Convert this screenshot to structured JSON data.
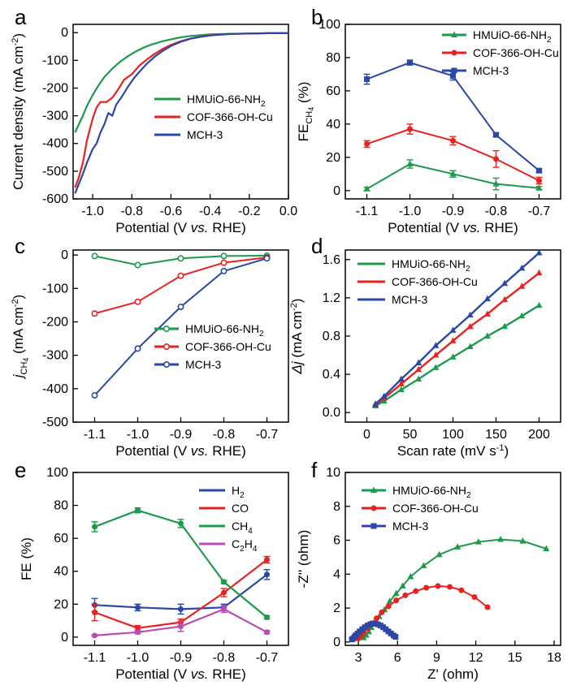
{
  "colors": {
    "green": "#1d9a4c",
    "red": "#e8231f",
    "blue": "#2b48a8",
    "magenta": "#b94db5"
  },
  "chart_data": [
    {
      "panel": "a",
      "type": "line",
      "xlabel": "Potential (V vs. RHE)",
      "ylabel": "Current density (mA cm-2)",
      "xlim": [
        -1.1,
        0.0
      ],
      "ylim": [
        -600,
        30
      ],
      "xticks": [
        -1.0,
        -0.8,
        -0.6,
        -0.4,
        -0.2,
        0.0
      ],
      "xtick_labels": [
        "-1.0",
        "-0.8",
        "-0.6",
        "-0.4",
        "-0.2",
        "0.0"
      ],
      "yticks": [
        0,
        -100,
        -200,
        -300,
        -400,
        -500,
        -600
      ],
      "ytick_labels": [
        "0",
        "-100",
        "-200",
        "-300",
        "-400",
        "-500",
        "-600"
      ],
      "legend_position": "center-right",
      "series": [
        {
          "name": "HMUiO-66-NH2",
          "label_main": "HMUiO-66-NH",
          "label_sub": "2",
          "color": "green",
          "x": [
            -1.09,
            -1.07,
            -1.05,
            -1.03,
            -1.0,
            -0.97,
            -0.94,
            -0.9,
            -0.86,
            -0.82,
            -0.78,
            -0.74,
            -0.7,
            -0.65,
            -0.6,
            -0.55,
            -0.5,
            -0.45,
            -0.4,
            -0.3,
            -0.2,
            -0.1,
            0.0
          ],
          "y": [
            -360,
            -330,
            -300,
            -265,
            -225,
            -190,
            -160,
            -130,
            -105,
            -85,
            -68,
            -54,
            -43,
            -32,
            -24,
            -17,
            -12,
            -9,
            -6,
            -4,
            -3,
            -2,
            -2
          ]
        },
        {
          "name": "COF-366-OH-Cu",
          "color": "red",
          "x": [
            -1.09,
            -1.07,
            -1.05,
            -1.03,
            -1.0,
            -0.98,
            -0.96,
            -0.93,
            -0.9,
            -0.87,
            -0.84,
            -0.8,
            -0.76,
            -0.72,
            -0.68,
            -0.64,
            -0.6,
            -0.55,
            -0.5,
            -0.45,
            -0.4,
            -0.3,
            -0.2,
            -0.1,
            0.0
          ],
          "y": [
            -560,
            -520,
            -470,
            -390,
            -310,
            -270,
            -250,
            -250,
            -235,
            -205,
            -170,
            -150,
            -118,
            -95,
            -75,
            -58,
            -44,
            -31,
            -21,
            -14,
            -9,
            -5,
            -3,
            -2,
            -2
          ]
        },
        {
          "name": "MCH-3",
          "color": "blue",
          "x": [
            -1.09,
            -1.07,
            -1.05,
            -1.03,
            -1.0,
            -0.98,
            -0.96,
            -0.94,
            -0.92,
            -0.9,
            -0.88,
            -0.85,
            -0.82,
            -0.79,
            -0.76,
            -0.72,
            -0.68,
            -0.64,
            -0.6,
            -0.55,
            -0.5,
            -0.45,
            -0.4,
            -0.3,
            -0.2,
            -0.1,
            0.0
          ],
          "y": [
            -580,
            -545,
            -510,
            -470,
            -420,
            -400,
            -360,
            -330,
            -290,
            -300,
            -260,
            -230,
            -195,
            -165,
            -140,
            -110,
            -85,
            -65,
            -48,
            -33,
            -22,
            -15,
            -10,
            -5,
            -3,
            -2,
            -2
          ]
        }
      ]
    },
    {
      "panel": "b",
      "type": "line",
      "xlabel": "Potential (V vs. RHE)",
      "ylabel": "FE_CH4 (%)",
      "xlim": [
        -1.15,
        -0.65
      ],
      "ylim": [
        -5,
        100
      ],
      "xticks": [
        -1.1,
        -1.0,
        -0.9,
        -0.8,
        -0.7
      ],
      "xtick_labels": [
        "-1.1",
        "-1.0",
        "-0.9",
        "-0.8",
        "-0.7"
      ],
      "yticks": [
        0,
        20,
        40,
        60,
        80,
        100
      ],
      "ytick_labels": [
        "0",
        "20",
        "40",
        "60",
        "80",
        "100"
      ],
      "legend_position": "top-right",
      "series": [
        {
          "name": "HMUiO-66-NH2",
          "label_main": "HMUiO-66-NH",
          "label_sub": "2",
          "color": "green",
          "marker": "triangle",
          "x": [
            -1.1,
            -1.0,
            -0.9,
            -0.8,
            -0.7
          ],
          "y": [
            1,
            16,
            10,
            4,
            1.5
          ],
          "err": [
            1,
            2.5,
            2,
            3.5,
            1
          ]
        },
        {
          "name": "COF-366-OH-Cu",
          "color": "red",
          "marker": "circle",
          "x": [
            -1.1,
            -1.0,
            -0.9,
            -0.8,
            -0.7
          ],
          "y": [
            28,
            37,
            30,
            19,
            6
          ],
          "err": [
            2,
            3,
            2.5,
            5,
            2
          ]
        },
        {
          "name": "MCH-3",
          "color": "blue",
          "marker": "square",
          "x": [
            -1.1,
            -1.0,
            -0.9,
            -0.8,
            -0.7
          ],
          "y": [
            67,
            77,
            69,
            33.5,
            12
          ],
          "err": [
            3,
            1.5,
            2.5,
            1,
            1
          ]
        }
      ]
    },
    {
      "panel": "c",
      "type": "line",
      "xlabel": "Potential (V vs. RHE)",
      "ylabel": "j_CH4 (mA cm-2)",
      "xlim": [
        -1.15,
        -0.65
      ],
      "ylim": [
        -500,
        15
      ],
      "xticks": [
        -1.1,
        -1.0,
        -0.9,
        -0.8,
        -0.7
      ],
      "xtick_labels": [
        "-1.1",
        "-1.0",
        "-0.9",
        "-0.8",
        "-0.7"
      ],
      "yticks": [
        0,
        -100,
        -200,
        -300,
        -400,
        -500
      ],
      "ytick_labels": [
        "0",
        "-100",
        "-200",
        "-300",
        "-400",
        "-500"
      ],
      "legend_position": "bottom-right",
      "series": [
        {
          "name": "HMUiO-66-NH2",
          "label_main": "HMUiO-66-NH",
          "label_sub": "2",
          "color": "green",
          "x": [
            -1.1,
            -1.0,
            -0.9,
            -0.8,
            -0.7
          ],
          "y": [
            -3,
            -30,
            -10,
            -3,
            -2
          ]
        },
        {
          "name": "COF-366-OH-Cu",
          "color": "red",
          "x": [
            -1.1,
            -1.0,
            -0.9,
            -0.8,
            -0.7
          ],
          "y": [
            -175,
            -140,
            -62,
            -23,
            -7
          ]
        },
        {
          "name": "MCH-3",
          "color": "blue",
          "x": [
            -1.1,
            -1.0,
            -0.9,
            -0.8,
            -0.7
          ],
          "y": [
            -420,
            -280,
            -155,
            -48,
            -10
          ]
        }
      ]
    },
    {
      "panel": "d",
      "type": "line",
      "xlabel": "Scan rate (mV s-1)",
      "ylabel": "Δj (mA cm-2)",
      "xlim": [
        -25,
        225
      ],
      "ylim": [
        -0.1,
        1.7
      ],
      "xticks": [
        0,
        50,
        100,
        150,
        200
      ],
      "xtick_labels": [
        "0",
        "50",
        "100",
        "150",
        "200"
      ],
      "yticks": [
        0.0,
        0.4,
        0.8,
        1.2,
        1.6
      ],
      "ytick_labels": [
        "0.0",
        "0.4",
        "0.8",
        "1.2",
        "1.6"
      ],
      "legend_position": "top-left",
      "series": [
        {
          "name": "HMUiO-66-NH2",
          "label_main": "HMUiO-66-NH",
          "label_sub": "2",
          "color": "green",
          "x": [
            10,
            20,
            40,
            60,
            80,
            100,
            120,
            140,
            160,
            180,
            200
          ],
          "y": [
            0.07,
            0.12,
            0.24,
            0.35,
            0.47,
            0.58,
            0.69,
            0.8,
            0.9,
            1.01,
            1.12
          ]
        },
        {
          "name": "COF-366-OH-Cu",
          "color": "red",
          "x": [
            10,
            20,
            40,
            60,
            80,
            100,
            120,
            140,
            160,
            180,
            200
          ],
          "y": [
            0.08,
            0.15,
            0.3,
            0.45,
            0.6,
            0.75,
            0.9,
            1.03,
            1.18,
            1.32,
            1.46
          ]
        },
        {
          "name": "MCH-3",
          "color": "blue",
          "x": [
            10,
            20,
            40,
            60,
            80,
            100,
            120,
            140,
            160,
            180,
            200
          ],
          "y": [
            0.09,
            0.17,
            0.35,
            0.52,
            0.7,
            0.86,
            1.02,
            1.19,
            1.35,
            1.51,
            1.67
          ]
        }
      ]
    },
    {
      "panel": "e",
      "type": "line",
      "xlabel": "Potential (V vs. RHE)",
      "ylabel": "FE (%)",
      "xlim": [
        -1.15,
        -0.65
      ],
      "ylim": [
        -5,
        100
      ],
      "xticks": [
        -1.1,
        -1.0,
        -0.9,
        -0.8,
        -0.7
      ],
      "xtick_labels": [
        "-1.1",
        "-1.0",
        "-0.9",
        "-0.8",
        "-0.7"
      ],
      "yticks": [
        0,
        20,
        40,
        60,
        80,
        100
      ],
      "ytick_labels": [
        "0",
        "20",
        "40",
        "60",
        "80",
        "100"
      ],
      "legend_position": "top-right",
      "series": [
        {
          "name": "H2",
          "label_main": "H",
          "label_sub": "2",
          "color": "blue",
          "x": [
            -1.1,
            -1.0,
            -0.9,
            -0.8,
            -0.7
          ],
          "y": [
            19.5,
            18,
            17,
            18,
            38
          ],
          "err": [
            4,
            2,
            3,
            2,
            3
          ]
        },
        {
          "name": "CO",
          "label_main": "CO",
          "label_sub": "",
          "color": "red",
          "x": [
            -1.1,
            -1.0,
            -0.9,
            -0.8,
            -0.7
          ],
          "y": [
            15,
            5.5,
            9,
            27,
            47
          ],
          "err": [
            5,
            1.5,
            2,
            2.5,
            2
          ]
        },
        {
          "name": "CH4",
          "label_main": "CH",
          "label_sub": "4",
          "color": "green",
          "x": [
            -1.1,
            -1.0,
            -0.9,
            -0.8,
            -0.7
          ],
          "y": [
            67,
            77,
            69,
            33.5,
            12
          ],
          "err": [
            3,
            1.5,
            2.5,
            1,
            1
          ]
        },
        {
          "name": "C2H4",
          "label_main": "C",
          "label_sub": "2",
          "label_main2": "H",
          "label_sub2": "4",
          "color": "magenta",
          "x": [
            -1.1,
            -1.0,
            -0.9,
            -0.8,
            -0.7
          ],
          "y": [
            1,
            3,
            6.5,
            17,
            3
          ],
          "err": [
            0.5,
            1,
            3,
            2,
            1
          ]
        }
      ]
    },
    {
      "panel": "f",
      "type": "scatter",
      "xlabel": "Z' (ohm)",
      "ylabel": "-Z'' (ohm)",
      "xlim": [
        2,
        18.5
      ],
      "ylim": [
        -0.2,
        10
      ],
      "xticks": [
        3,
        6,
        9,
        12,
        15,
        18
      ],
      "xtick_labels": [
        "3",
        "6",
        "9",
        "12",
        "15",
        "18"
      ],
      "yticks": [
        0,
        2,
        4,
        6,
        8,
        10
      ],
      "ytick_labels": [
        "0",
        "2",
        "4",
        "6",
        "8",
        "10"
      ],
      "legend_position": "top-left",
      "series": [
        {
          "name": "HMUiO-66-NH2",
          "label_main": "HMUiO-66-NH",
          "label_sub": "2",
          "color": "green",
          "marker": "triangle",
          "x": [
            3.4,
            3.6,
            3.8,
            4.0,
            4.3,
            4.6,
            5.0,
            5.4,
            5.9,
            6.4,
            7.0,
            8.0,
            9.2,
            10.6,
            12.2,
            13.9,
            15.6,
            17.4
          ],
          "y": [
            0.25,
            0.4,
            0.6,
            0.85,
            1.15,
            1.5,
            1.9,
            2.4,
            2.85,
            3.3,
            3.85,
            4.5,
            5.15,
            5.6,
            5.9,
            6.05,
            5.95,
            5.5
          ]
        },
        {
          "name": "COF-366-OH-Cu",
          "color": "red",
          "marker": "circle",
          "x": [
            3.0,
            3.2,
            3.4,
            3.7,
            4.0,
            4.4,
            4.8,
            5.3,
            5.9,
            6.6,
            7.4,
            8.2,
            9.1,
            10.0,
            10.9,
            11.9,
            12.9
          ],
          "y": [
            0.2,
            0.35,
            0.55,
            0.8,
            1.1,
            1.4,
            1.75,
            2.1,
            2.45,
            2.75,
            3.0,
            3.2,
            3.3,
            3.25,
            3.05,
            2.65,
            2.05
          ]
        },
        {
          "name": "MCH-3",
          "color": "blue",
          "marker": "square",
          "x": [
            2.5,
            2.6,
            2.7,
            2.8,
            2.95,
            3.1,
            3.3,
            3.5,
            3.7,
            3.9,
            4.1,
            4.3,
            4.5,
            4.7,
            4.9,
            5.1,
            5.3,
            5.5,
            5.7,
            5.85
          ],
          "y": [
            0.15,
            0.2,
            0.3,
            0.4,
            0.5,
            0.62,
            0.75,
            0.87,
            0.97,
            1.04,
            1.08,
            1.08,
            1.04,
            0.97,
            0.87,
            0.75,
            0.62,
            0.5,
            0.38,
            0.3
          ]
        }
      ]
    }
  ]
}
